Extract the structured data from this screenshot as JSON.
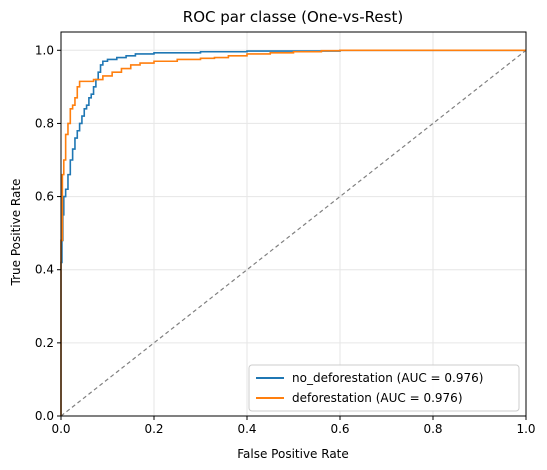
{
  "chart_data": {
    "type": "line",
    "title": "ROC par classe (One-vs-Rest)",
    "xlabel": "False Positive Rate",
    "ylabel": "True Positive Rate",
    "xlim": [
      0,
      1
    ],
    "ylim": [
      0,
      1.05
    ],
    "x_ticks": [
      "0.0",
      "0.2",
      "0.4",
      "0.6",
      "0.8",
      "1.0"
    ],
    "y_ticks": [
      "0.0",
      "0.2",
      "0.4",
      "0.6",
      "0.8",
      "1.0"
    ],
    "grid": true,
    "legend_position": "lower-right",
    "diagonal": {
      "x": [
        0,
        1
      ],
      "y": [
        0,
        1
      ],
      "color": "#808080",
      "style": "dashed"
    },
    "series": [
      {
        "name": "no_deforestation (AUC = 0.976)",
        "color": "#1f77b4",
        "x": [
          0,
          0,
          0.002,
          0.002,
          0.004,
          0.004,
          0.006,
          0.006,
          0.01,
          0.01,
          0.015,
          0.015,
          0.02,
          0.02,
          0.025,
          0.025,
          0.03,
          0.03,
          0.035,
          0.035,
          0.04,
          0.04,
          0.045,
          0.045,
          0.05,
          0.05,
          0.055,
          0.055,
          0.06,
          0.06,
          0.065,
          0.065,
          0.07,
          0.07,
          0.075,
          0.075,
          0.08,
          0.08,
          0.085,
          0.085,
          0.09,
          0.09,
          0.1,
          0.1,
          0.12,
          0.12,
          0.14,
          0.14,
          0.16,
          0.16,
          0.2,
          0.2,
          0.3,
          0.3,
          0.4,
          0.4,
          0.6,
          0.6,
          1.0
        ],
        "y": [
          0,
          0.42,
          0.42,
          0.48,
          0.48,
          0.55,
          0.55,
          0.6,
          0.6,
          0.62,
          0.62,
          0.66,
          0.66,
          0.7,
          0.7,
          0.73,
          0.73,
          0.76,
          0.76,
          0.78,
          0.78,
          0.8,
          0.8,
          0.82,
          0.82,
          0.84,
          0.84,
          0.85,
          0.85,
          0.87,
          0.87,
          0.88,
          0.88,
          0.9,
          0.9,
          0.92,
          0.92,
          0.94,
          0.94,
          0.96,
          0.96,
          0.97,
          0.97,
          0.975,
          0.975,
          0.98,
          0.98,
          0.985,
          0.985,
          0.99,
          0.99,
          0.993,
          0.993,
          0.996,
          0.996,
          0.998,
          0.998,
          1.0,
          1.0
        ]
      },
      {
        "name": "deforestation (AUC = 0.976)",
        "color": "#ff7f0e",
        "x": [
          0,
          0,
          0.003,
          0.003,
          0.006,
          0.006,
          0.01,
          0.01,
          0.015,
          0.015,
          0.02,
          0.02,
          0.025,
          0.025,
          0.03,
          0.03,
          0.035,
          0.035,
          0.04,
          0.04,
          0.07,
          0.07,
          0.09,
          0.09,
          0.11,
          0.11,
          0.13,
          0.13,
          0.15,
          0.15,
          0.17,
          0.17,
          0.2,
          0.2,
          0.25,
          0.25,
          0.3,
          0.3,
          0.33,
          0.33,
          0.36,
          0.36,
          0.4,
          0.4,
          0.45,
          0.45,
          0.5,
          0.5,
          0.56,
          0.56,
          0.6,
          0.6,
          1.0
        ],
        "y": [
          0,
          0.48,
          0.48,
          0.66,
          0.66,
          0.7,
          0.7,
          0.77,
          0.77,
          0.8,
          0.8,
          0.84,
          0.84,
          0.85,
          0.85,
          0.87,
          0.87,
          0.9,
          0.9,
          0.915,
          0.915,
          0.92,
          0.92,
          0.93,
          0.93,
          0.94,
          0.94,
          0.95,
          0.95,
          0.96,
          0.96,
          0.965,
          0.965,
          0.97,
          0.97,
          0.975,
          0.975,
          0.978,
          0.978,
          0.98,
          0.98,
          0.985,
          0.985,
          0.99,
          0.99,
          0.993,
          0.993,
          0.996,
          0.996,
          0.999,
          0.999,
          1.0,
          1.0
        ]
      }
    ]
  }
}
